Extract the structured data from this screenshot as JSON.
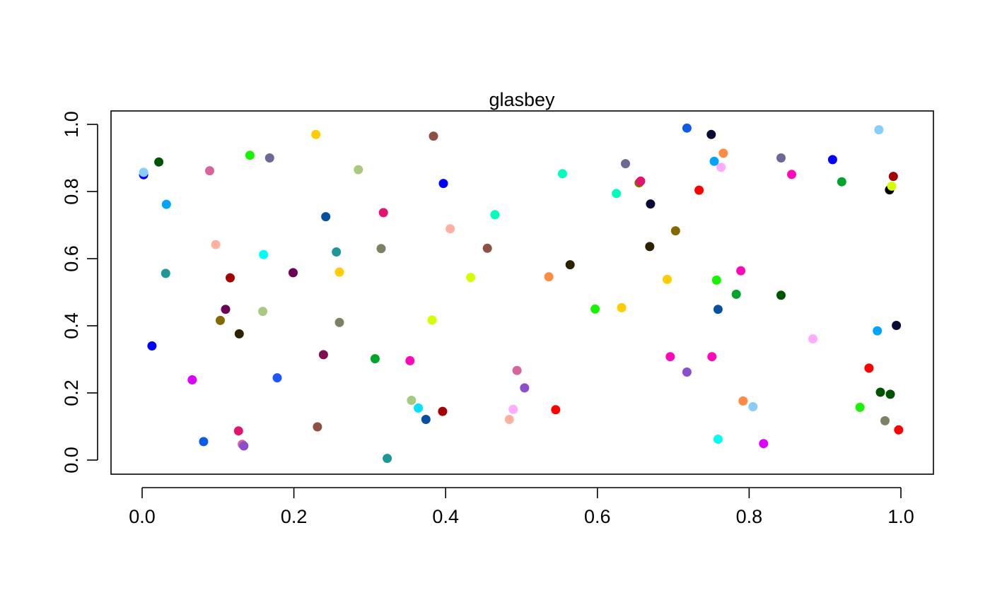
{
  "chart_data": {
    "type": "scatter",
    "title": "glasbey",
    "xlabel": "",
    "ylabel": "",
    "xlim": [
      0.0,
      1.0
    ],
    "ylim": [
      0.0,
      1.0
    ],
    "x_ticks": [
      "0.0",
      "0.2",
      "0.4",
      "0.6",
      "0.8",
      "1.0"
    ],
    "y_ticks": [
      "0.0",
      "0.2",
      "0.4",
      "0.6",
      "0.8",
      "1.0"
    ],
    "grid": false,
    "legend": "none",
    "points": [
      {
        "x": 0.002,
        "y": 0.85,
        "color": "#0000FF"
      },
      {
        "x": 0.002,
        "y": 0.857,
        "color": "#87CEFA"
      },
      {
        "x": 0.022,
        "y": 0.888,
        "color": "#005300"
      },
      {
        "x": 0.032,
        "y": 0.762,
        "color": "#00A4FF"
      },
      {
        "x": 0.031,
        "y": 0.556,
        "color": "#1F9698"
      },
      {
        "x": 0.013,
        "y": 0.34,
        "color": "#0000FF"
      },
      {
        "x": 0.066,
        "y": 0.239,
        "color": "#DC00FF"
      },
      {
        "x": 0.081,
        "y": 0.055,
        "color": "#0C5AE8"
      },
      {
        "x": 0.089,
        "y": 0.862,
        "color": "#D5659B"
      },
      {
        "x": 0.097,
        "y": 0.642,
        "color": "#FFB0A0"
      },
      {
        "x": 0.103,
        "y": 0.416,
        "color": "#846800"
      },
      {
        "x": 0.11,
        "y": 0.449,
        "color": "#6B0057"
      },
      {
        "x": 0.116,
        "y": 0.543,
        "color": "#A50003"
      },
      {
        "x": 0.127,
        "y": 0.087,
        "color": "#E31470"
      },
      {
        "x": 0.128,
        "y": 0.376,
        "color": "#2A2200"
      },
      {
        "x": 0.132,
        "y": 0.047,
        "color": "#D5659B"
      },
      {
        "x": 0.134,
        "y": 0.042,
        "color": "#8C4FCB"
      },
      {
        "x": 0.142,
        "y": 0.908,
        "color": "#18F400"
      },
      {
        "x": 0.159,
        "y": 0.443,
        "color": "#A7CA80"
      },
      {
        "x": 0.16,
        "y": 0.612,
        "color": "#00FFF3"
      },
      {
        "x": 0.168,
        "y": 0.9,
        "color": "#6B6996"
      },
      {
        "x": 0.178,
        "y": 0.245,
        "color": "#1D56FF"
      },
      {
        "x": 0.199,
        "y": 0.558,
        "color": "#6B0057"
      },
      {
        "x": 0.229,
        "y": 0.97,
        "color": "#FFCC00"
      },
      {
        "x": 0.231,
        "y": 0.099,
        "color": "#8E5045"
      },
      {
        "x": 0.239,
        "y": 0.314,
        "color": "#7F0F4F"
      },
      {
        "x": 0.242,
        "y": 0.725,
        "color": "#07509F"
      },
      {
        "x": 0.256,
        "y": 0.62,
        "color": "#1F9698"
      },
      {
        "x": 0.26,
        "y": 0.56,
        "color": "#FFCC00"
      },
      {
        "x": 0.26,
        "y": 0.41,
        "color": "#7E8064"
      },
      {
        "x": 0.285,
        "y": 0.865,
        "color": "#A7CA80"
      },
      {
        "x": 0.307,
        "y": 0.302,
        "color": "#00A42B"
      },
      {
        "x": 0.315,
        "y": 0.63,
        "color": "#7E8064"
      },
      {
        "x": 0.318,
        "y": 0.737,
        "color": "#E31470"
      },
      {
        "x": 0.323,
        "y": 0.005,
        "color": "#1F9698"
      },
      {
        "x": 0.353,
        "y": 0.296,
        "color": "#FF08B9"
      },
      {
        "x": 0.355,
        "y": 0.178,
        "color": "#A7CA80"
      },
      {
        "x": 0.364,
        "y": 0.155,
        "color": "#00E2FF"
      },
      {
        "x": 0.374,
        "y": 0.121,
        "color": "#07509F"
      },
      {
        "x": 0.382,
        "y": 0.417,
        "color": "#D4FF00"
      },
      {
        "x": 0.384,
        "y": 0.965,
        "color": "#8E5045"
      },
      {
        "x": 0.396,
        "y": 0.145,
        "color": "#A50003"
      },
      {
        "x": 0.397,
        "y": 0.824,
        "color": "#0000FF"
      },
      {
        "x": 0.406,
        "y": 0.689,
        "color": "#FFB0A0"
      },
      {
        "x": 0.433,
        "y": 0.544,
        "color": "#D4FF00"
      },
      {
        "x": 0.455,
        "y": 0.631,
        "color": "#8E5045"
      },
      {
        "x": 0.465,
        "y": 0.731,
        "color": "#00FFBE"
      },
      {
        "x": 0.484,
        "y": 0.121,
        "color": "#FFB0A0"
      },
      {
        "x": 0.489,
        "y": 0.151,
        "color": "#FFABFF"
      },
      {
        "x": 0.494,
        "y": 0.267,
        "color": "#D5659B"
      },
      {
        "x": 0.504,
        "y": 0.215,
        "color": "#8C4FCB"
      },
      {
        "x": 0.536,
        "y": 0.546,
        "color": "#FF8C43"
      },
      {
        "x": 0.545,
        "y": 0.15,
        "color": "#FF0000"
      },
      {
        "x": 0.554,
        "y": 0.853,
        "color": "#00FFBE"
      },
      {
        "x": 0.564,
        "y": 0.582,
        "color": "#2A2200"
      },
      {
        "x": 0.597,
        "y": 0.45,
        "color": "#18F400"
      },
      {
        "x": 0.625,
        "y": 0.794,
        "color": "#00FFBE"
      },
      {
        "x": 0.632,
        "y": 0.454,
        "color": "#FFCC00"
      },
      {
        "x": 0.637,
        "y": 0.883,
        "color": "#6B6996"
      },
      {
        "x": 0.655,
        "y": 0.826,
        "color": "#846800"
      },
      {
        "x": 0.657,
        "y": 0.831,
        "color": "#E31470"
      },
      {
        "x": 0.669,
        "y": 0.636,
        "color": "#2A2200"
      },
      {
        "x": 0.67,
        "y": 0.763,
        "color": "#0A0A36"
      },
      {
        "x": 0.692,
        "y": 0.538,
        "color": "#FFCC00"
      },
      {
        "x": 0.696,
        "y": 0.308,
        "color": "#FF08B9"
      },
      {
        "x": 0.703,
        "y": 0.683,
        "color": "#846800"
      },
      {
        "x": 0.718,
        "y": 0.262,
        "color": "#8C4FCB"
      },
      {
        "x": 0.718,
        "y": 0.989,
        "color": "#0C5AE8"
      },
      {
        "x": 0.734,
        "y": 0.804,
        "color": "#FF0000"
      },
      {
        "x": 0.75,
        "y": 0.97,
        "color": "#0A0A36"
      },
      {
        "x": 0.751,
        "y": 0.308,
        "color": "#FF08B9"
      },
      {
        "x": 0.754,
        "y": 0.89,
        "color": "#00A4FF"
      },
      {
        "x": 0.757,
        "y": 0.536,
        "color": "#18F400"
      },
      {
        "x": 0.759,
        "y": 0.449,
        "color": "#07509F"
      },
      {
        "x": 0.759,
        "y": 0.062,
        "color": "#00FFF3"
      },
      {
        "x": 0.763,
        "y": 0.872,
        "color": "#FFABFF"
      },
      {
        "x": 0.766,
        "y": 0.914,
        "color": "#FF8C43"
      },
      {
        "x": 0.783,
        "y": 0.494,
        "color": "#00A42B"
      },
      {
        "x": 0.789,
        "y": 0.564,
        "color": "#FF08B9"
      },
      {
        "x": 0.792,
        "y": 0.176,
        "color": "#FF8C43"
      },
      {
        "x": 0.805,
        "y": 0.159,
        "color": "#87CEFA"
      },
      {
        "x": 0.819,
        "y": 0.049,
        "color": "#DC00FF"
      },
      {
        "x": 0.842,
        "y": 0.9,
        "color": "#6B6996"
      },
      {
        "x": 0.842,
        "y": 0.491,
        "color": "#005300"
      },
      {
        "x": 0.856,
        "y": 0.851,
        "color": "#FF08B9"
      },
      {
        "x": 0.884,
        "y": 0.361,
        "color": "#FFABFF"
      },
      {
        "x": 0.91,
        "y": 0.895,
        "color": "#0000FF"
      },
      {
        "x": 0.922,
        "y": 0.829,
        "color": "#00A42B"
      },
      {
        "x": 0.946,
        "y": 0.157,
        "color": "#18F400"
      },
      {
        "x": 0.958,
        "y": 0.274,
        "color": "#FF0000"
      },
      {
        "x": 0.969,
        "y": 0.385,
        "color": "#00A4FF"
      },
      {
        "x": 0.971,
        "y": 0.984,
        "color": "#87CEFA"
      },
      {
        "x": 0.973,
        "y": 0.202,
        "color": "#005300"
      },
      {
        "x": 0.979,
        "y": 0.117,
        "color": "#7E8064"
      },
      {
        "x": 0.985,
        "y": 0.805,
        "color": "#000000"
      },
      {
        "x": 0.986,
        "y": 0.196,
        "color": "#005300"
      },
      {
        "x": 0.988,
        "y": 0.816,
        "color": "#D4FF00"
      },
      {
        "x": 0.99,
        "y": 0.845,
        "color": "#A50003"
      },
      {
        "x": 0.994,
        "y": 0.401,
        "color": "#0A0A36"
      },
      {
        "x": 0.997,
        "y": 0.09,
        "color": "#FF0000"
      }
    ]
  }
}
